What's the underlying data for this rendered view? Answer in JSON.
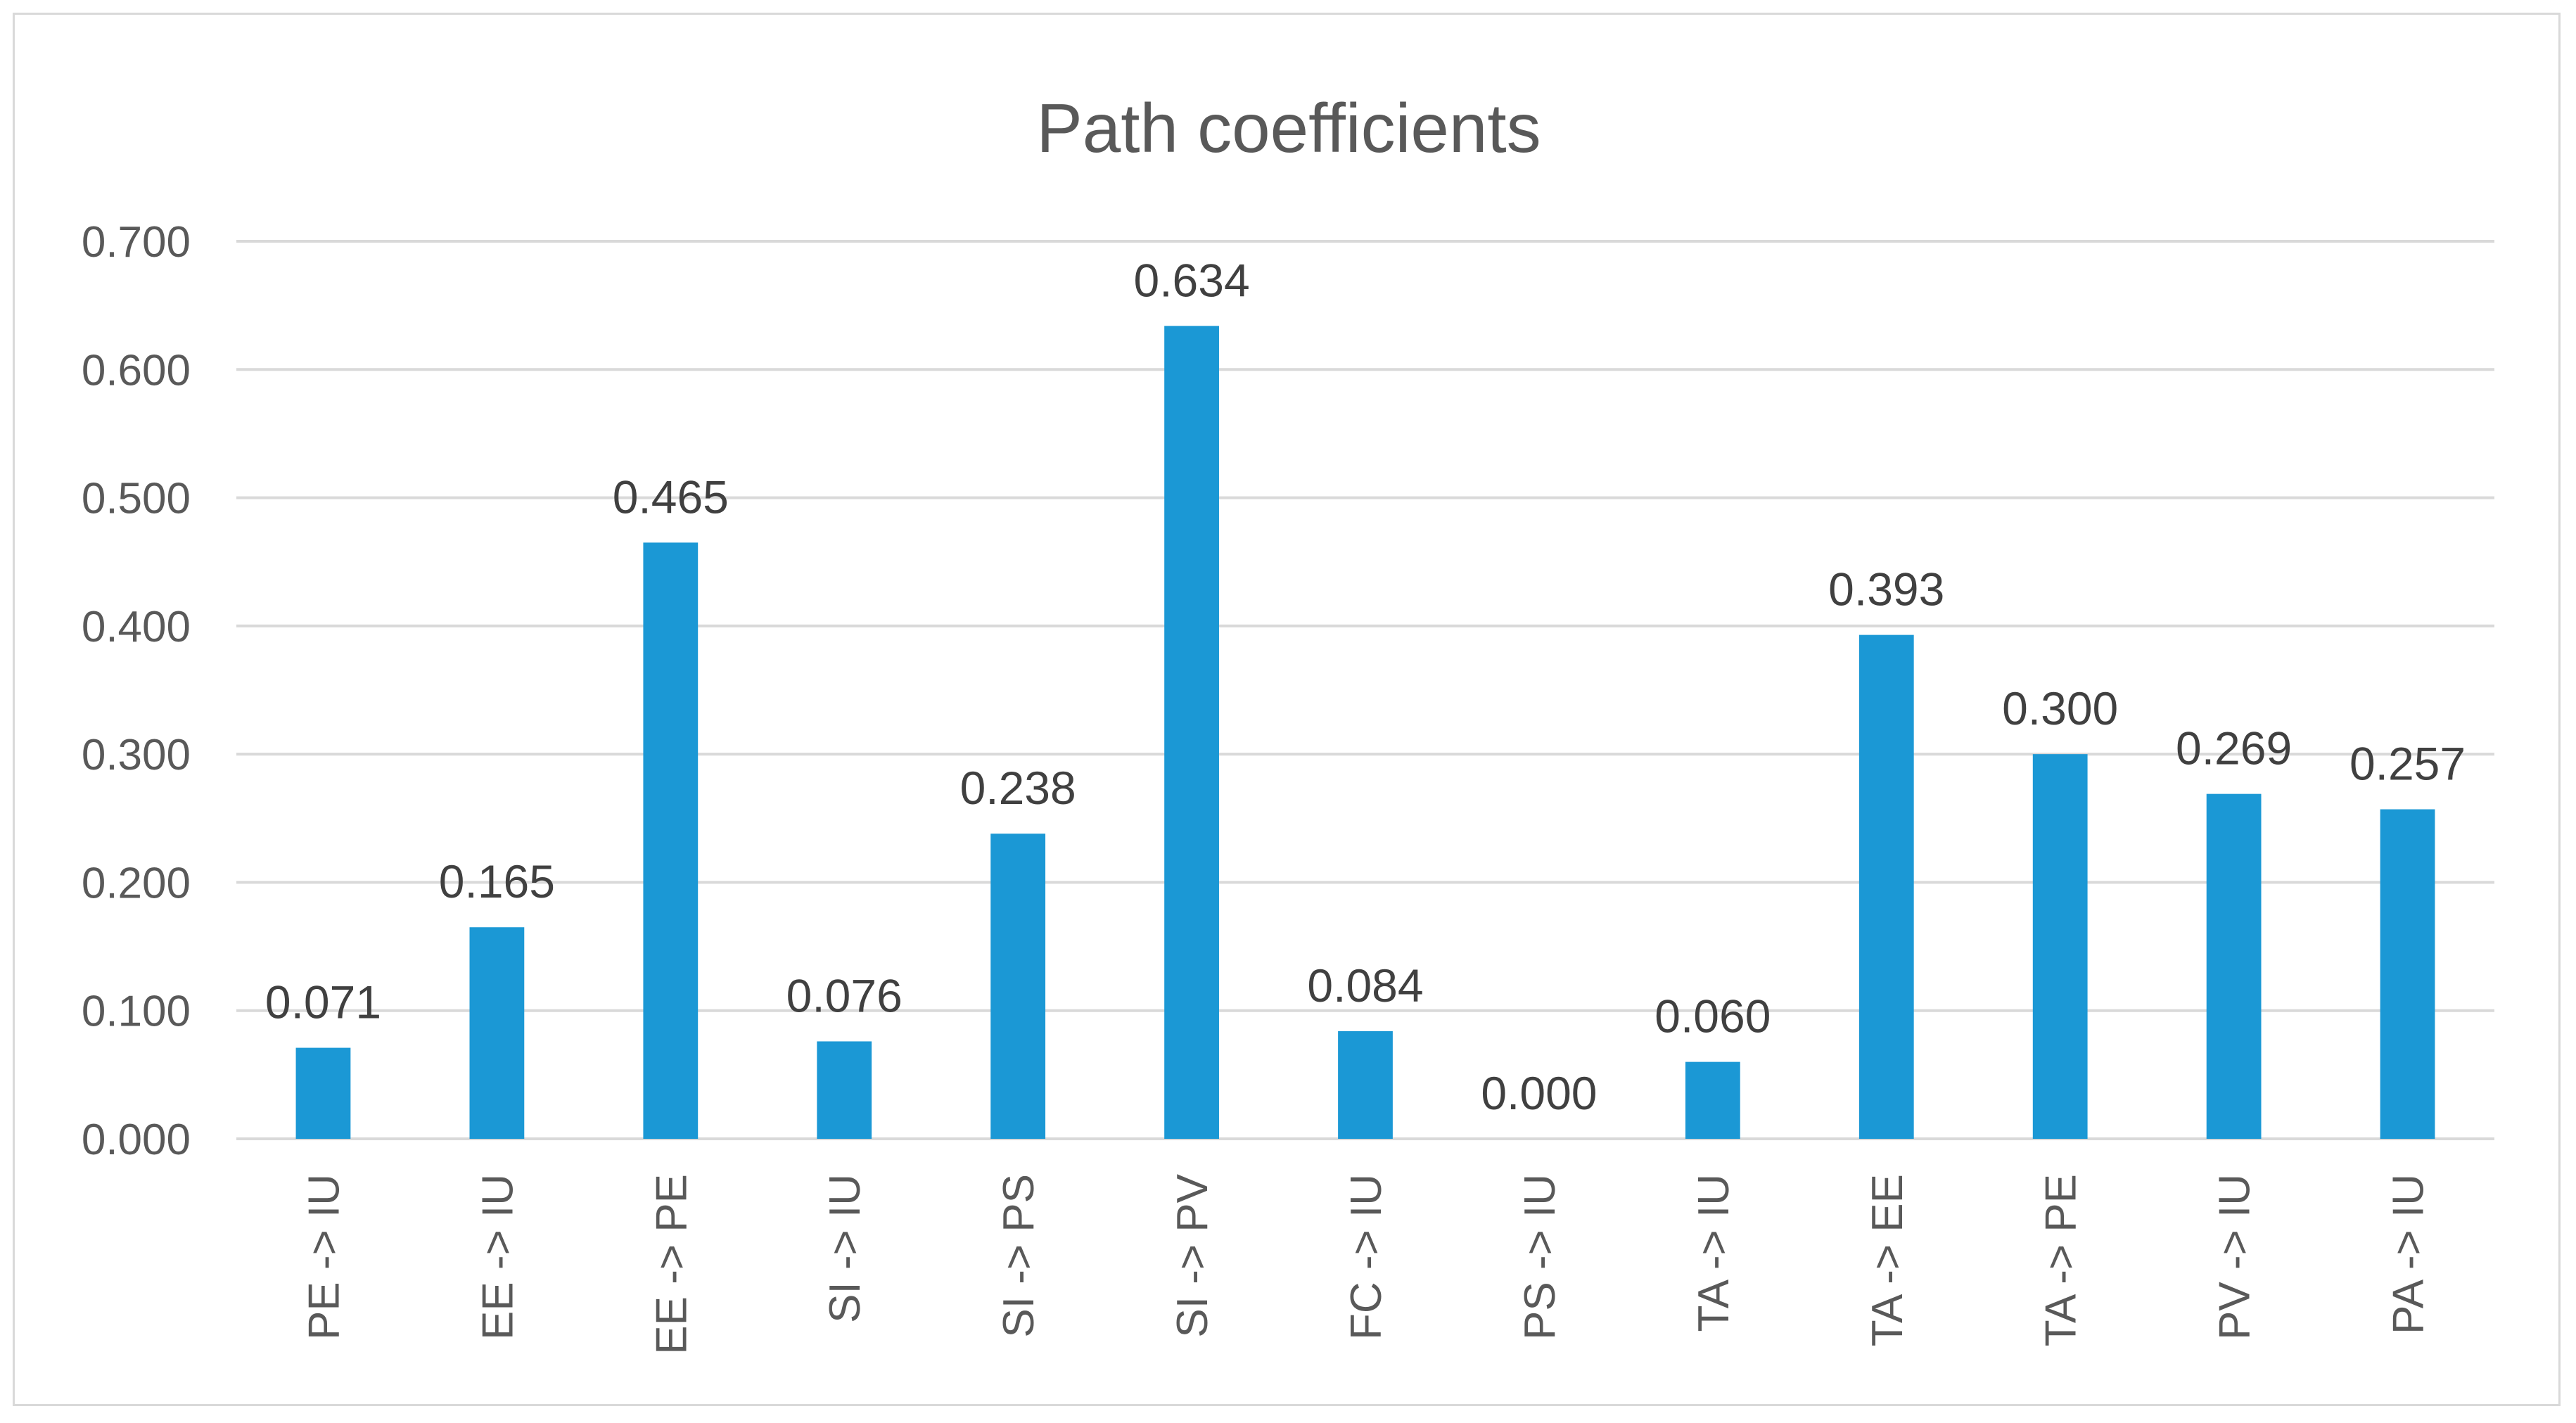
{
  "chart_data": {
    "type": "bar",
    "title": "Path coefficients",
    "xlabel": "",
    "ylabel": "",
    "ylim": [
      0,
      0.7
    ],
    "yticks": [
      "0.000",
      "0.100",
      "0.200",
      "0.300",
      "0.400",
      "0.500",
      "0.600",
      "0.700"
    ],
    "grid": true,
    "legend": "none",
    "bar_color": "#1b98d5",
    "categories": [
      "PE -> IU",
      "EE -> IU",
      "EE -> PE",
      "SI -> IU",
      "SI -> PS",
      "SI -> PV",
      "FC -> IU",
      "PS -> IU",
      "TA -> IU",
      "TA -> EE",
      "TA -> PE",
      "PV -> IU",
      "PA -> IU"
    ],
    "values": [
      0.071,
      0.165,
      0.465,
      0.076,
      0.238,
      0.634,
      0.084,
      0.0,
      0.06,
      0.393,
      0.3,
      0.269,
      0.257
    ],
    "data_labels": [
      "0.071",
      "0.165",
      "0.465",
      "0.076",
      "0.238",
      "0.634",
      "0.084",
      "0.000",
      "0.060",
      "0.393",
      "0.300",
      "0.269",
      "0.257"
    ]
  }
}
